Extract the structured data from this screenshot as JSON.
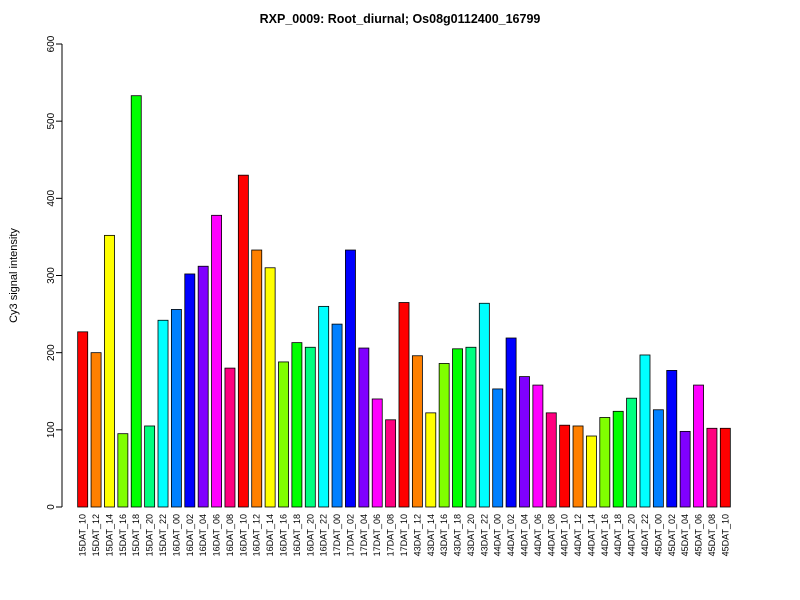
{
  "chart_data": {
    "type": "bar",
    "title": "RXP_0009: Root_diurnal; Os08g0112400_16799",
    "xlabel": "",
    "ylabel": "Cy3 signal intensity",
    "ylim": [
      0,
      600
    ],
    "yticks": [
      0,
      100,
      200,
      300,
      400,
      500,
      600
    ],
    "grid": false,
    "legend": false,
    "bar_border_color": "#000000",
    "palette": [
      "#FF0000",
      "#FF8000",
      "#FFFF00",
      "#80FF00",
      "#00FF00",
      "#00FF80",
      "#00FFFF",
      "#0080FF",
      "#0000FF",
      "#8000FF",
      "#FF00FF",
      "#FF0080"
    ],
    "categories": [
      "15DAT_10",
      "15DAT_12",
      "15DAT_14",
      "15DAT_16",
      "15DAT_18",
      "15DAT_20",
      "15DAT_22",
      "16DAT_00",
      "16DAT_02",
      "16DAT_04",
      "16DAT_06",
      "16DAT_08",
      "16DAT_10",
      "16DAT_12",
      "16DAT_14",
      "16DAT_16",
      "16DAT_18",
      "16DAT_20",
      "16DAT_22",
      "17DAT_00",
      "17DAT_02",
      "17DAT_04",
      "17DAT_06",
      "17DAT_08",
      "17DAT_10",
      "43DAT_12",
      "43DAT_14",
      "43DAT_16",
      "43DAT_18",
      "43DAT_20",
      "43DAT_22",
      "44DAT_00",
      "44DAT_02",
      "44DAT_04",
      "44DAT_06",
      "44DAT_08",
      "44DAT_10",
      "44DAT_12",
      "44DAT_14",
      "44DAT_16",
      "44DAT_18",
      "44DAT_20",
      "44DAT_22",
      "45DAT_00",
      "45DAT_02",
      "45DAT_04",
      "45DAT_06",
      "45DAT_08",
      "45DAT_10"
    ],
    "values": [
      227,
      200,
      352,
      95,
      533,
      105,
      242,
      256,
      302,
      312,
      378,
      180,
      430,
      333,
      310,
      188,
      213,
      207,
      260,
      237,
      333,
      206,
      140,
      113,
      265,
      196,
      122,
      186,
      205,
      207,
      264,
      153,
      219,
      169,
      158,
      122,
      106,
      105,
      92,
      116,
      124,
      141,
      197,
      126,
      177,
      98,
      158,
      102,
      102
    ]
  }
}
